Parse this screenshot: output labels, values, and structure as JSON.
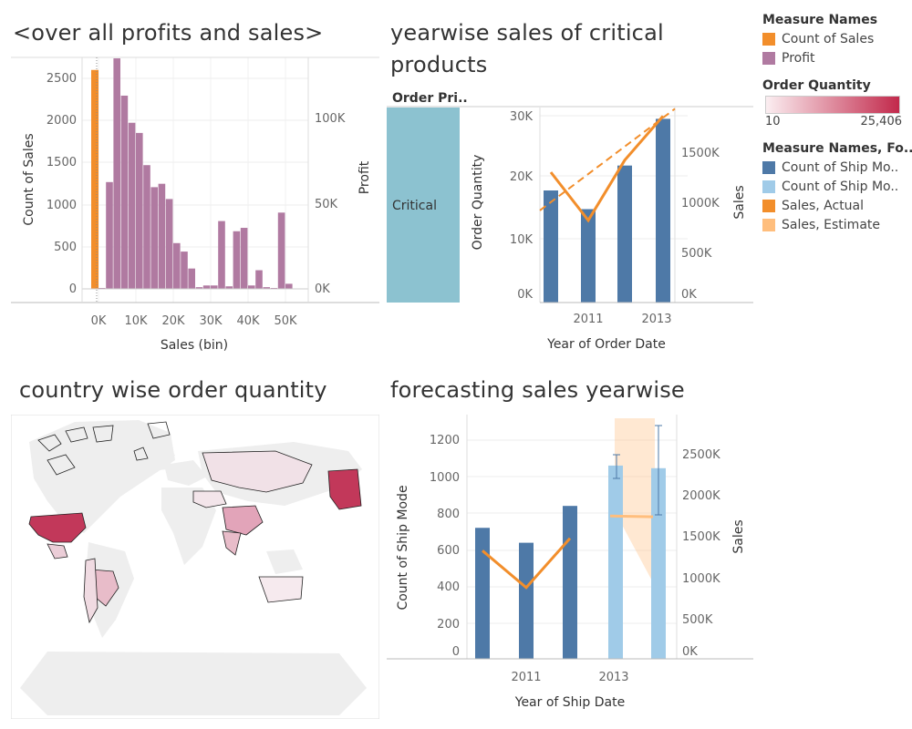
{
  "colors": {
    "orange": "#f28e2b",
    "purple": "#b07aa1",
    "blue": "#4e79a7",
    "lightblue": "#a0cbe8",
    "peach": "#ffbe7d",
    "teal": "#8cc2d0",
    "grad_low": "#fbeef1",
    "grad_high": "#c2294b"
  },
  "sheets": {
    "profits": {
      "title": "<over all profits and sales>",
      "left_axis_title": "Count of Sales",
      "right_axis_title": "Profit",
      "x_axis_title": "Sales (bin)",
      "left_ticks": [
        "2500",
        "2000",
        "1500",
        "1000",
        "500",
        "0"
      ],
      "right_ticks": [
        "100K",
        "50K",
        "0K"
      ],
      "x_ticks": [
        "0K",
        "10K",
        "20K",
        "30K",
        "40K",
        "50K"
      ]
    },
    "yearwise": {
      "title_line1": "yearwise sales of critical",
      "title_line2": "products",
      "header": "Order Pri..",
      "row_label": "Critical",
      "left_axis_title": "Order Quantity",
      "right_axis_title": "Sales",
      "x_axis_title": "Year of Order Date",
      "left_ticks": [
        "30K",
        "20K",
        "10K",
        "0K"
      ],
      "right_ticks": [
        "1500K",
        "1000K",
        "500K",
        "0K"
      ],
      "x_ticks": [
        "2011",
        "2013"
      ]
    },
    "map": {
      "title": "country wise order quantity"
    },
    "forecast": {
      "title": "forecasting sales yearwise",
      "left_axis_title": "Count of Ship Mode",
      "right_axis_title": "Sales",
      "x_axis_title": "Year of Ship Date",
      "left_ticks": [
        "1200",
        "1000",
        "800",
        "600",
        "400",
        "200",
        "0"
      ],
      "right_ticks": [
        "2500K",
        "2000K",
        "1500K",
        "1000K",
        "500K",
        "0K"
      ],
      "x_ticks": [
        "2011",
        "2013"
      ]
    }
  },
  "legend": {
    "measure_names_title": "Measure Names",
    "measure_names": [
      {
        "label": "Count of Sales",
        "color": "#f28e2b"
      },
      {
        "label": "Profit",
        "color": "#b07aa1"
      }
    ],
    "order_quantity_title": "Order Quantity",
    "order_quantity_min": "10",
    "order_quantity_max": "25,406",
    "forecast_title": "Measure Names, Fo..",
    "forecast_items": [
      {
        "label": "Count of Ship Mo..",
        "color": "#4e79a7"
      },
      {
        "label": "Count of Ship Mo..",
        "color": "#a0cbe8"
      },
      {
        "label": "Sales, Actual",
        "color": "#f28e2b"
      },
      {
        "label": "Sales, Estimate",
        "color": "#ffbe7d"
      }
    ]
  },
  "chart_data": [
    {
      "type": "bar",
      "title": "<over all profits and sales>",
      "xlabel": "Sales (bin)",
      "ylabel": "Count of Sales",
      "y2label": "Profit",
      "ylim": [
        0,
        2600
      ],
      "y2lim": [
        -5000,
        140000
      ],
      "x": [
        0,
        2000,
        4000,
        6000,
        8000,
        10000,
        12000,
        14000,
        16000,
        18000,
        20000,
        22000,
        24000,
        26000,
        28000,
        30000,
        32000,
        34000,
        36000,
        38000,
        40000,
        42000,
        44000,
        46000,
        48000,
        50000
      ],
      "series": [
        {
          "name": "Count of Sales",
          "x": [
            0
          ],
          "values": [
            2600
          ]
        },
        {
          "name": "Profit",
          "values": [
            0,
            63000,
            136000,
            114000,
            98000,
            92000,
            73000,
            60000,
            62000,
            53000,
            27000,
            22000,
            12000,
            1000,
            2000,
            2000,
            40000,
            1500,
            34000,
            36000,
            2000,
            11000,
            1000,
            0,
            45000,
            3000
          ]
        }
      ]
    },
    {
      "type": "bar",
      "title": "yearwise sales of critical products",
      "row": "Critical",
      "xlabel": "Year of Order Date",
      "ylabel": "Order Quantity",
      "y2label": "Sales",
      "categories": [
        "2010",
        "2011",
        "2012",
        "2013"
      ],
      "ylim": [
        0,
        30000
      ],
      "y2lim": [
        0,
        1900000
      ],
      "series": [
        {
          "name": "Order Quantity",
          "values": [
            18000,
            15000,
            22000,
            29500
          ]
        },
        {
          "name": "Sales",
          "values": [
            1300000,
            820000,
            1420000,
            1860000
          ]
        },
        {
          "name": "Sales trend",
          "values": [
            1000000,
            1270000,
            1530000,
            1790000
          ]
        }
      ]
    },
    {
      "type": "bar",
      "title": "forecasting sales yearwise",
      "xlabel": "Year of Ship Date",
      "ylabel": "Count of Ship Mode",
      "y2label": "Sales",
      "categories": [
        "2010",
        "2011",
        "2012",
        "2013",
        "2014"
      ],
      "ylim": [
        0,
        1300
      ],
      "y2lim": [
        0,
        2850000
      ],
      "series": [
        {
          "name": "Count of Ship Mode, Actual",
          "values": [
            700,
            615,
            825,
            null,
            null
          ]
        },
        {
          "name": "Count of Ship Mode, Estimate",
          "values": [
            null,
            null,
            null,
            1055,
            1040
          ]
        },
        {
          "name": "Sales, Actual",
          "values": [
            1300000,
            820000,
            1460000,
            null,
            null
          ]
        },
        {
          "name": "Sales, Estimate",
          "values": [
            null,
            null,
            null,
            1750000,
            1740000
          ]
        }
      ]
    }
  ]
}
